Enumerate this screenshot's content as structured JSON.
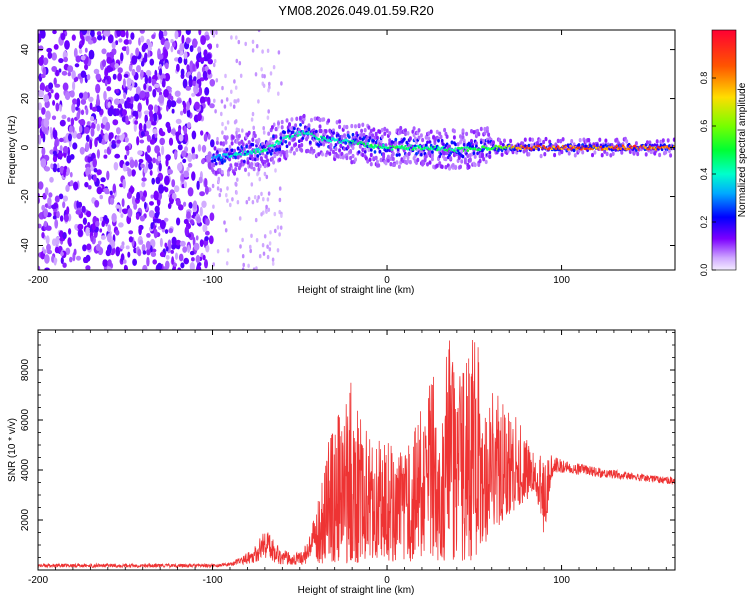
{
  "title": "YM08.2026.049.01.59.R20",
  "chart_data": [
    {
      "type": "heatmap",
      "panel": "top",
      "xlabel": "Height of straight line (km)",
      "ylabel": "Frequency (Hz)",
      "xlim": [
        -200,
        165
      ],
      "ylim": [
        -50,
        48
      ],
      "x_ticks": [
        -200,
        -100,
        0,
        100
      ],
      "x_tick_labels": [
        "-200",
        "-100",
        "0",
        "100"
      ],
      "y_ticks": [
        -40,
        -20,
        0,
        20,
        40
      ],
      "y_tick_labels": [
        "-40",
        "-20",
        "0",
        "20",
        "40"
      ],
      "colorbar": {
        "label": "Normalized spectral amplitude",
        "range": [
          0,
          1
        ],
        "ticks": [
          0,
          0.2,
          0.4,
          0.6,
          0.8
        ],
        "tick_labels": [
          "0.0",
          "0.2",
          "0.4",
          "0.6",
          "0.8"
        ]
      },
      "ridge": {
        "x": [
          -100,
          -90,
          -80,
          -70,
          -60,
          -50,
          -45,
          -40,
          -30,
          -20,
          -10,
          0,
          20,
          40,
          60,
          80,
          100,
          165
        ],
        "frequency": [
          -4,
          -3,
          -2,
          -1,
          3,
          6,
          6,
          4,
          3,
          2,
          1,
          0,
          0,
          -1,
          0,
          0,
          0,
          0
        ],
        "peak_amplitude": [
          0.35,
          0.4,
          0.45,
          0.45,
          0.45,
          0.45,
          0.45,
          0.45,
          0.42,
          0.45,
          0.5,
          0.5,
          0.5,
          0.5,
          0.55,
          0.9,
          0.9,
          0.9
        ]
      },
      "noise_region_x": [
        -200,
        -100
      ]
    },
    {
      "type": "line",
      "panel": "bottom",
      "xlabel": "Height of straight line (km)",
      "ylabel": "SNR (10 * v/v)",
      "xlim": [
        -200,
        165
      ],
      "ylim": [
        0,
        9600
      ],
      "x_ticks": [
        -200,
        -100,
        0,
        100
      ],
      "x_tick_labels": [
        "-200",
        "-100",
        "0",
        "100"
      ],
      "y_ticks": [
        2000,
        4000,
        6000,
        8000
      ],
      "y_tick_labels": [
        "2000",
        "4000",
        "6000",
        "8000"
      ],
      "color": "#ee3333",
      "envelope": {
        "x": [
          -200,
          -100,
          -90,
          -80,
          -75,
          -70,
          -65,
          -60,
          -50,
          -45,
          -40,
          -35,
          -30,
          -20,
          -10,
          0,
          10,
          20,
          30,
          35,
          40,
          50,
          60,
          70,
          80,
          85,
          90,
          95,
          100,
          120,
          140,
          165
        ],
        "max": [
          250,
          250,
          280,
          700,
          1000,
          1700,
          1300,
          800,
          700,
          1200,
          2600,
          5500,
          5800,
          7700,
          5300,
          5400,
          4500,
          6700,
          8400,
          9500,
          7500,
          9500,
          7300,
          6600,
          5500,
          4400,
          4700,
          4600,
          4400,
          4100,
          3900,
          3700
        ],
        "min": [
          100,
          100,
          150,
          250,
          300,
          500,
          300,
          200,
          200,
          200,
          300,
          200,
          300,
          200,
          500,
          400,
          200,
          500,
          300,
          300,
          400,
          300,
          1500,
          2200,
          2800,
          3200,
          1300,
          3800,
          3900,
          3700,
          3600,
          3400
        ]
      }
    }
  ]
}
